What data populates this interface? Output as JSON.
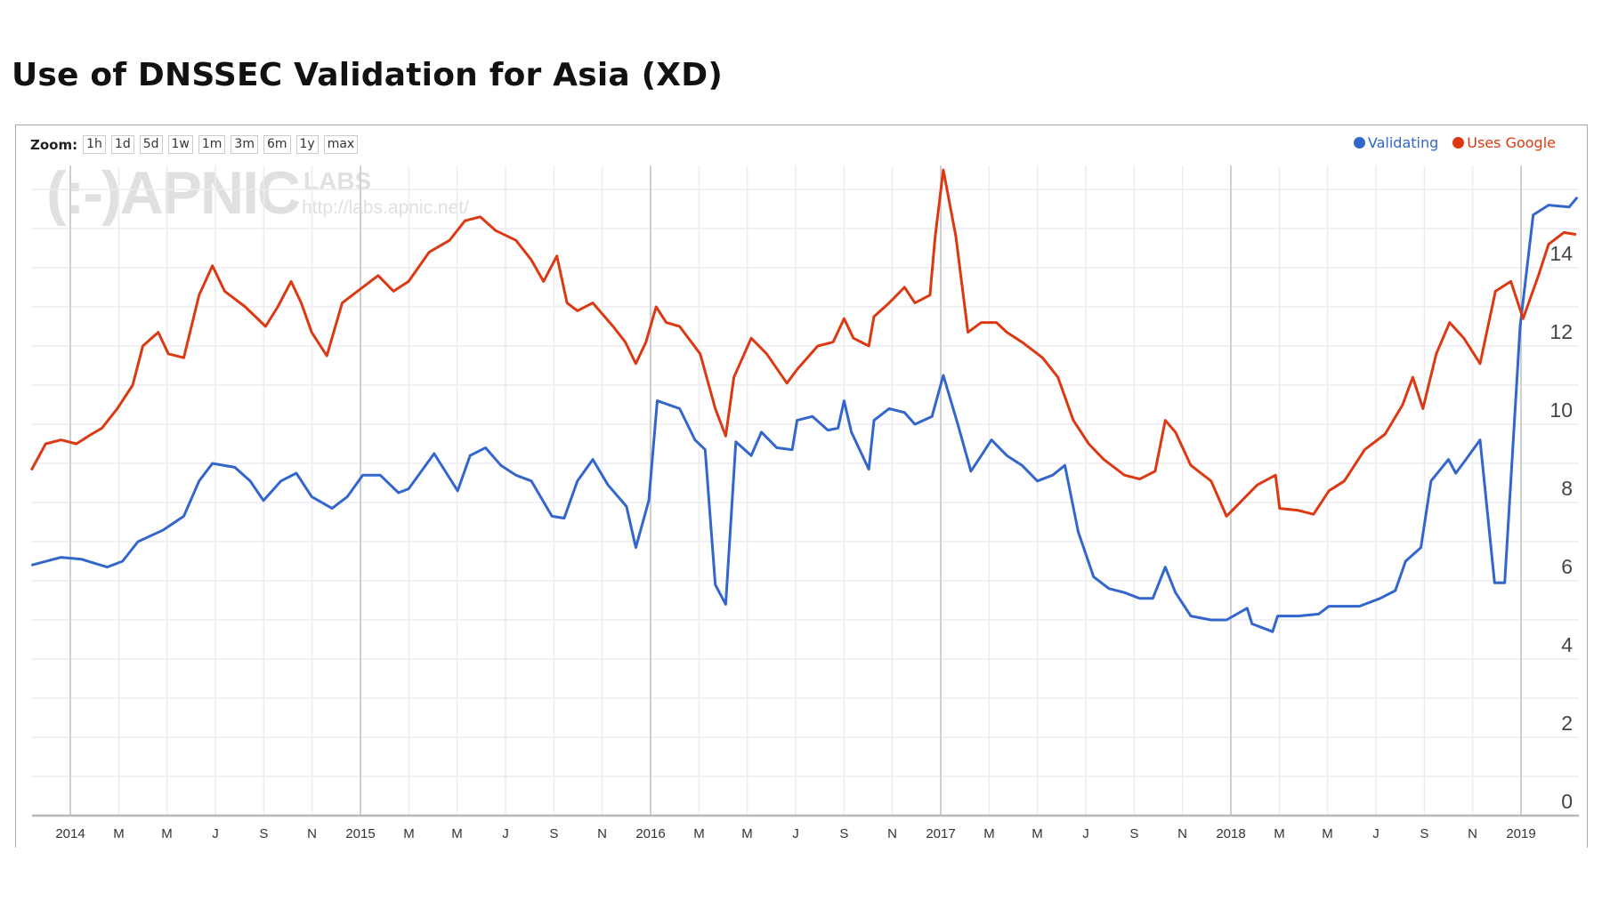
{
  "title": "Use of DNSSEC Validation for Asia (XD)",
  "zoom": {
    "label": "Zoom:",
    "buttons": [
      "1h",
      "1d",
      "5d",
      "1w",
      "1m",
      "3m",
      "6m",
      "1y",
      "max"
    ]
  },
  "watermark": {
    "logo": "(:-)APNIC",
    "labs": "LABS",
    "url": "http://labs.apnic.net/"
  },
  "colors": {
    "validating": "#3366cc",
    "uses_google": "#dc3912"
  },
  "chart_data": {
    "type": "line",
    "title": "Use of DNSSEC Validation for Asia (XD)",
    "xlabel": "",
    "ylabel": "",
    "xlim": [
      2013.866,
      2019.2
    ],
    "ylim": [
      0,
      16.6
    ],
    "yticks": [
      0,
      2,
      4,
      6,
      8,
      10,
      12,
      14
    ],
    "xticks": [
      {
        "x": 2014.0,
        "label": "2014",
        "year": true
      },
      {
        "x": 2014.167,
        "label": "M"
      },
      {
        "x": 2014.333,
        "label": "M"
      },
      {
        "x": 2014.5,
        "label": "J"
      },
      {
        "x": 2014.667,
        "label": "S"
      },
      {
        "x": 2014.833,
        "label": "N"
      },
      {
        "x": 2015.0,
        "label": "2015",
        "year": true
      },
      {
        "x": 2015.167,
        "label": "M"
      },
      {
        "x": 2015.333,
        "label": "M"
      },
      {
        "x": 2015.5,
        "label": "J"
      },
      {
        "x": 2015.667,
        "label": "S"
      },
      {
        "x": 2015.833,
        "label": "N"
      },
      {
        "x": 2016.0,
        "label": "2016",
        "year": true
      },
      {
        "x": 2016.167,
        "label": "M"
      },
      {
        "x": 2016.333,
        "label": "M"
      },
      {
        "x": 2016.5,
        "label": "J"
      },
      {
        "x": 2016.667,
        "label": "S"
      },
      {
        "x": 2016.833,
        "label": "N"
      },
      {
        "x": 2017.0,
        "label": "2017",
        "year": true
      },
      {
        "x": 2017.167,
        "label": "M"
      },
      {
        "x": 2017.333,
        "label": "M"
      },
      {
        "x": 2017.5,
        "label": "J"
      },
      {
        "x": 2017.667,
        "label": "S"
      },
      {
        "x": 2017.833,
        "label": "N"
      },
      {
        "x": 2018.0,
        "label": "2018",
        "year": true
      },
      {
        "x": 2018.167,
        "label": "M"
      },
      {
        "x": 2018.333,
        "label": "M"
      },
      {
        "x": 2018.5,
        "label": "J"
      },
      {
        "x": 2018.667,
        "label": "S"
      },
      {
        "x": 2018.833,
        "label": "N"
      },
      {
        "x": 2019.0,
        "label": "2019",
        "year": true
      }
    ],
    "grid": true,
    "legend": {
      "placement": "top-right",
      "entries": [
        "Validating",
        "Uses Google"
      ]
    },
    "series": [
      {
        "name": "Validating",
        "color": "#3366cc",
        "points": [
          [
            2013.866,
            6.4
          ],
          [
            2013.968,
            6.6
          ],
          [
            2014.039,
            6.55
          ],
          [
            2014.127,
            6.35
          ],
          [
            2014.18,
            6.5
          ],
          [
            2014.233,
            7.0
          ],
          [
            2014.321,
            7.3
          ],
          [
            2014.391,
            7.65
          ],
          [
            2014.444,
            8.55
          ],
          [
            2014.49,
            9.0
          ],
          [
            2014.567,
            8.9
          ],
          [
            2014.62,
            8.55
          ],
          [
            2014.666,
            8.05
          ],
          [
            2014.726,
            8.55
          ],
          [
            2014.779,
            8.75
          ],
          [
            2014.832,
            8.15
          ],
          [
            2014.902,
            7.85
          ],
          [
            2014.955,
            8.15
          ],
          [
            2015.008,
            8.7
          ],
          [
            2015.068,
            8.7
          ],
          [
            2015.131,
            8.25
          ],
          [
            2015.166,
            8.35
          ],
          [
            2015.254,
            9.25
          ],
          [
            2015.335,
            8.3
          ],
          [
            2015.378,
            9.2
          ],
          [
            2015.431,
            9.4
          ],
          [
            2015.484,
            8.95
          ],
          [
            2015.536,
            8.7
          ],
          [
            2015.589,
            8.55
          ],
          [
            2015.66,
            7.65
          ],
          [
            2015.702,
            7.6
          ],
          [
            2015.748,
            8.55
          ],
          [
            2015.801,
            9.1
          ],
          [
            2015.853,
            8.45
          ],
          [
            2015.917,
            7.9
          ],
          [
            2015.949,
            6.85
          ],
          [
            2015.994,
            8.05
          ],
          [
            2016.023,
            10.6
          ],
          [
            2016.1,
            10.4
          ],
          [
            2016.153,
            9.6
          ],
          [
            2016.188,
            9.35
          ],
          [
            2016.223,
            5.9
          ],
          [
            2016.259,
            5.4
          ],
          [
            2016.294,
            9.55
          ],
          [
            2016.347,
            9.2
          ],
          [
            2016.382,
            9.8
          ],
          [
            2016.435,
            9.4
          ],
          [
            2016.488,
            9.35
          ],
          [
            2016.505,
            10.1
          ],
          [
            2016.558,
            10.2
          ],
          [
            2016.611,
            9.85
          ],
          [
            2016.646,
            9.9
          ],
          [
            2016.667,
            10.6
          ],
          [
            2016.692,
            9.8
          ],
          [
            2016.752,
            8.85
          ],
          [
            2016.77,
            10.1
          ],
          [
            2016.822,
            10.4
          ],
          [
            2016.875,
            10.3
          ],
          [
            2016.911,
            10.0
          ],
          [
            2016.97,
            10.2
          ],
          [
            2017.009,
            11.25
          ],
          [
            2017.059,
            10.0
          ],
          [
            2017.104,
            8.8
          ],
          [
            2017.14,
            9.2
          ],
          [
            2017.175,
            9.6
          ],
          [
            2017.228,
            9.2
          ],
          [
            2017.28,
            8.95
          ],
          [
            2017.333,
            8.55
          ],
          [
            2017.386,
            8.7
          ],
          [
            2017.428,
            8.95
          ],
          [
            2017.474,
            7.25
          ],
          [
            2017.527,
            6.1
          ],
          [
            2017.58,
            5.8
          ],
          [
            2017.633,
            5.7
          ],
          [
            2017.686,
            5.55
          ],
          [
            2017.731,
            5.55
          ],
          [
            2017.774,
            6.35
          ],
          [
            2017.809,
            5.7
          ],
          [
            2017.862,
            5.1
          ],
          [
            2017.932,
            5.0
          ],
          [
            2017.985,
            5.0
          ],
          [
            2018.056,
            5.3
          ],
          [
            2018.073,
            4.9
          ],
          [
            2018.144,
            4.7
          ],
          [
            2018.161,
            5.1
          ],
          [
            2018.232,
            5.1
          ],
          [
            2018.302,
            5.15
          ],
          [
            2018.338,
            5.35
          ],
          [
            2018.443,
            5.35
          ],
          [
            2018.514,
            5.55
          ],
          [
            2018.567,
            5.75
          ],
          [
            2018.602,
            6.5
          ],
          [
            2018.655,
            6.85
          ],
          [
            2018.69,
            8.55
          ],
          [
            2018.75,
            9.1
          ],
          [
            2018.775,
            8.75
          ],
          [
            2018.81,
            9.1
          ],
          [
            2018.859,
            9.6
          ],
          [
            2018.909,
            5.95
          ],
          [
            2018.944,
            5.95
          ],
          [
            2018.997,
            12.5
          ],
          [
            2019.042,
            15.35
          ],
          [
            2019.095,
            15.6
          ],
          [
            2019.166,
            15.55
          ],
          [
            2019.194,
            15.8
          ]
        ]
      },
      {
        "name": "Uses Google",
        "color": "#dc3912",
        "points": [
          [
            2013.866,
            8.83
          ],
          [
            2013.915,
            9.5
          ],
          [
            2013.968,
            9.6
          ],
          [
            2014.021,
            9.5
          ],
          [
            2014.074,
            9.75
          ],
          [
            2014.109,
            9.9
          ],
          [
            2014.162,
            10.4
          ],
          [
            2014.215,
            11.0
          ],
          [
            2014.25,
            12.0
          ],
          [
            2014.303,
            12.35
          ],
          [
            2014.338,
            11.8
          ],
          [
            2014.391,
            11.7
          ],
          [
            2014.444,
            13.3
          ],
          [
            2014.49,
            14.05
          ],
          [
            2014.532,
            13.4
          ],
          [
            2014.603,
            13.0
          ],
          [
            2014.673,
            12.5
          ],
          [
            2014.715,
            13.0
          ],
          [
            2014.761,
            13.65
          ],
          [
            2014.796,
            13.1
          ],
          [
            2014.832,
            12.35
          ],
          [
            2014.884,
            11.75
          ],
          [
            2014.937,
            13.1
          ],
          [
            2014.99,
            13.4
          ],
          [
            2015.061,
            13.8
          ],
          [
            2015.114,
            13.4
          ],
          [
            2015.166,
            13.65
          ],
          [
            2015.237,
            14.4
          ],
          [
            2015.307,
            14.7
          ],
          [
            2015.36,
            15.2
          ],
          [
            2015.413,
            15.3
          ],
          [
            2015.466,
            14.95
          ],
          [
            2015.536,
            14.7
          ],
          [
            2015.589,
            14.2
          ],
          [
            2015.631,
            13.65
          ],
          [
            2015.677,
            14.3
          ],
          [
            2015.712,
            13.1
          ],
          [
            2015.748,
            12.9
          ],
          [
            2015.801,
            13.1
          ],
          [
            2015.871,
            12.5
          ],
          [
            2015.913,
            12.1
          ],
          [
            2015.949,
            11.55
          ],
          [
            2015.984,
            12.1
          ],
          [
            2016.019,
            13.0
          ],
          [
            2016.054,
            12.6
          ],
          [
            2016.1,
            12.5
          ],
          [
            2016.171,
            11.8
          ],
          [
            2016.223,
            10.4
          ],
          [
            2016.259,
            9.7
          ],
          [
            2016.287,
            11.2
          ],
          [
            2016.347,
            12.2
          ],
          [
            2016.4,
            11.8
          ],
          [
            2016.47,
            11.05
          ],
          [
            2016.505,
            11.4
          ],
          [
            2016.576,
            12.0
          ],
          [
            2016.629,
            12.1
          ],
          [
            2016.667,
            12.7
          ],
          [
            2016.699,
            12.2
          ],
          [
            2016.752,
            12.0
          ],
          [
            2016.77,
            12.75
          ],
          [
            2016.822,
            13.1
          ],
          [
            2016.875,
            13.5
          ],
          [
            2016.911,
            13.1
          ],
          [
            2016.963,
            13.3
          ],
          [
            2016.981,
            14.8
          ],
          [
            2017.009,
            16.5
          ],
          [
            2017.052,
            14.8
          ],
          [
            2017.094,
            12.35
          ],
          [
            2017.14,
            12.6
          ],
          [
            2017.192,
            12.6
          ],
          [
            2017.228,
            12.35
          ],
          [
            2017.28,
            12.1
          ],
          [
            2017.351,
            11.7
          ],
          [
            2017.404,
            11.2
          ],
          [
            2017.457,
            10.1
          ],
          [
            2017.51,
            9.5
          ],
          [
            2017.562,
            9.1
          ],
          [
            2017.633,
            8.7
          ],
          [
            2017.686,
            8.6
          ],
          [
            2017.739,
            8.8
          ],
          [
            2017.774,
            10.1
          ],
          [
            2017.809,
            9.8
          ],
          [
            2017.862,
            8.95
          ],
          [
            2017.932,
            8.55
          ],
          [
            2017.985,
            7.65
          ],
          [
            2018.038,
            8.05
          ],
          [
            2018.091,
            8.45
          ],
          [
            2018.154,
            8.7
          ],
          [
            2018.168,
            7.85
          ],
          [
            2018.232,
            7.8
          ],
          [
            2018.285,
            7.7
          ],
          [
            2018.338,
            8.3
          ],
          [
            2018.391,
            8.55
          ],
          [
            2018.461,
            9.35
          ],
          [
            2018.532,
            9.75
          ],
          [
            2018.592,
            10.5
          ],
          [
            2018.627,
            11.2
          ],
          [
            2018.662,
            10.4
          ],
          [
            2018.708,
            11.8
          ],
          [
            2018.754,
            12.6
          ],
          [
            2018.803,
            12.2
          ],
          [
            2018.859,
            11.55
          ],
          [
            2018.912,
            13.4
          ],
          [
            2018.965,
            13.65
          ],
          [
            2019.007,
            12.7
          ],
          [
            2019.06,
            13.8
          ],
          [
            2019.095,
            14.6
          ],
          [
            2019.148,
            14.9
          ],
          [
            2019.19,
            14.85
          ]
        ]
      }
    ]
  }
}
